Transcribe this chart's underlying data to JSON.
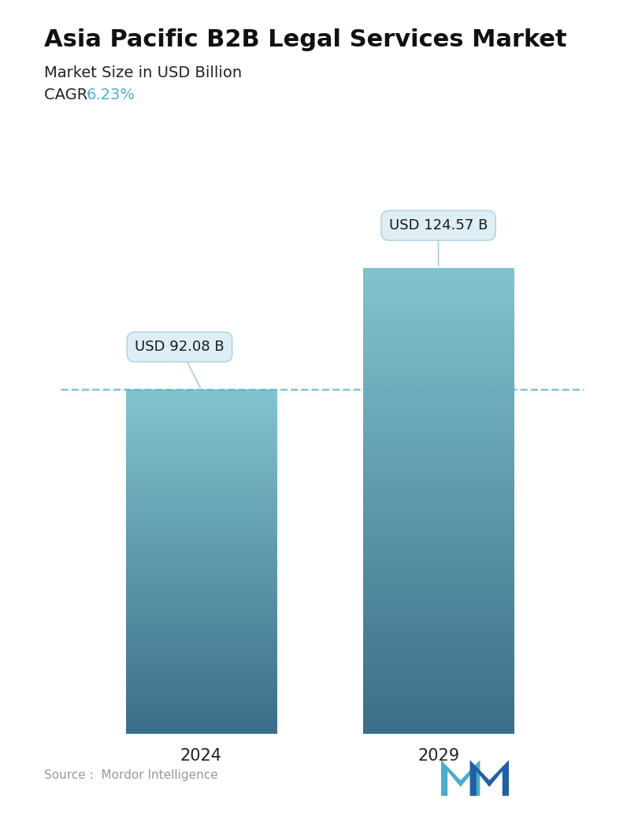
{
  "title": "Asia Pacific B2B Legal Services Market",
  "subtitle": "Market Size in USD Billion",
  "cagr_label": "CAGR ",
  "cagr_value": "6.23%",
  "cagr_color": "#4aafd4",
  "categories": [
    "2024",
    "2029"
  ],
  "values": [
    92.08,
    124.57
  ],
  "bar_labels": [
    "USD 92.08 B",
    "USD 124.57 B"
  ],
  "dashed_line_value": 92.08,
  "bar_color_top": "#82c4cd",
  "bar_color_bottom": "#3a6e8a",
  "bar_width": 0.28,
  "background_color": "#ffffff",
  "title_fontsize": 22,
  "subtitle_fontsize": 14,
  "cagr_fontsize": 14,
  "label_fontsize": 13,
  "tick_fontsize": 15,
  "source_text": "Source :  Mordor Intelligence",
  "source_fontsize": 11,
  "source_color": "#999999",
  "dashed_line_color": "#5aaccf",
  "annotation_bg_color": "#ddeef4",
  "annotation_border_color": "#aacfdf"
}
